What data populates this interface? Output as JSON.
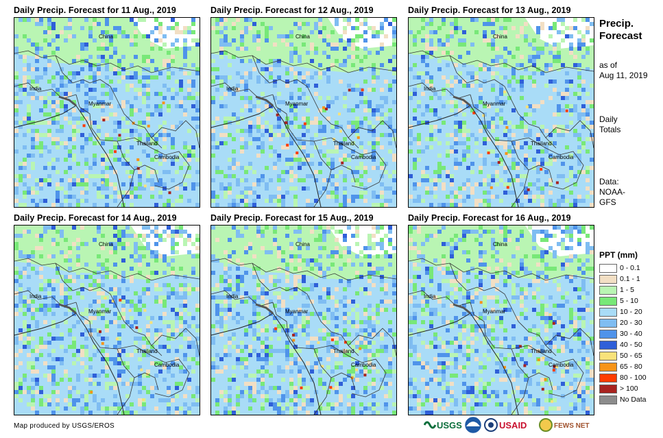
{
  "panels": [
    {
      "title": "Daily Precip. Forecast for 11 Aug., 2019",
      "seed": 11
    },
    {
      "title": "Daily Precip. Forecast for 12 Aug., 2019",
      "seed": 12
    },
    {
      "title": "Daily Precip. Forecast for 13 Aug., 2019",
      "seed": 13
    },
    {
      "title": "Daily Precip. Forecast for 14 Aug., 2019",
      "seed": 14
    },
    {
      "title": "Daily Precip. Forecast for 15 Aug., 2019",
      "seed": 15
    },
    {
      "title": "Daily Precip. Forecast for 16 Aug., 2019",
      "seed": 16
    }
  ],
  "map_labels": {
    "china": "China",
    "india": "India",
    "myanmar": "Myanmar",
    "thailand": "Thailand",
    "cambodia": "Cambodia"
  },
  "side": {
    "title_line1": "Precip.",
    "title_line2": "Forecast",
    "asof_line1": "as of",
    "asof_line2": "Aug 11, 2019",
    "daily_line1": "Daily",
    "daily_line2": "Totals",
    "data_line1": "Data:",
    "data_line2": "NOAA-",
    "data_line3": "GFS"
  },
  "legend": {
    "title": "PPT (mm)",
    "items": [
      {
        "label": "0 - 0.1",
        "color": "#ffffff"
      },
      {
        "label": "0.1 - 1",
        "color": "#f2dfc4"
      },
      {
        "label": "1 - 5",
        "color": "#b9f5b3"
      },
      {
        "label": "5 - 10",
        "color": "#78e878"
      },
      {
        "label": "10 - 20",
        "color": "#a9dcf7"
      },
      {
        "label": "20 - 30",
        "color": "#7fbdf2"
      },
      {
        "label": "30 - 40",
        "color": "#4f93ea"
      },
      {
        "label": "40 - 50",
        "color": "#2f5fd8"
      },
      {
        "label": "50 - 65",
        "color": "#f8e27a"
      },
      {
        "label": "65 - 80",
        "color": "#f79418"
      },
      {
        "label": "80 - 100",
        "color": "#ff3c00"
      },
      {
        "label": "> 100",
        "color": "#a8231f"
      },
      {
        "label": "No Data",
        "color": "#8c8c8c"
      }
    ]
  },
  "credit": "Map produced by USGS/EROS",
  "logos": {
    "usgs": "USGS",
    "usaid": "USAID",
    "fewsnet": "FEWS NET"
  }
}
